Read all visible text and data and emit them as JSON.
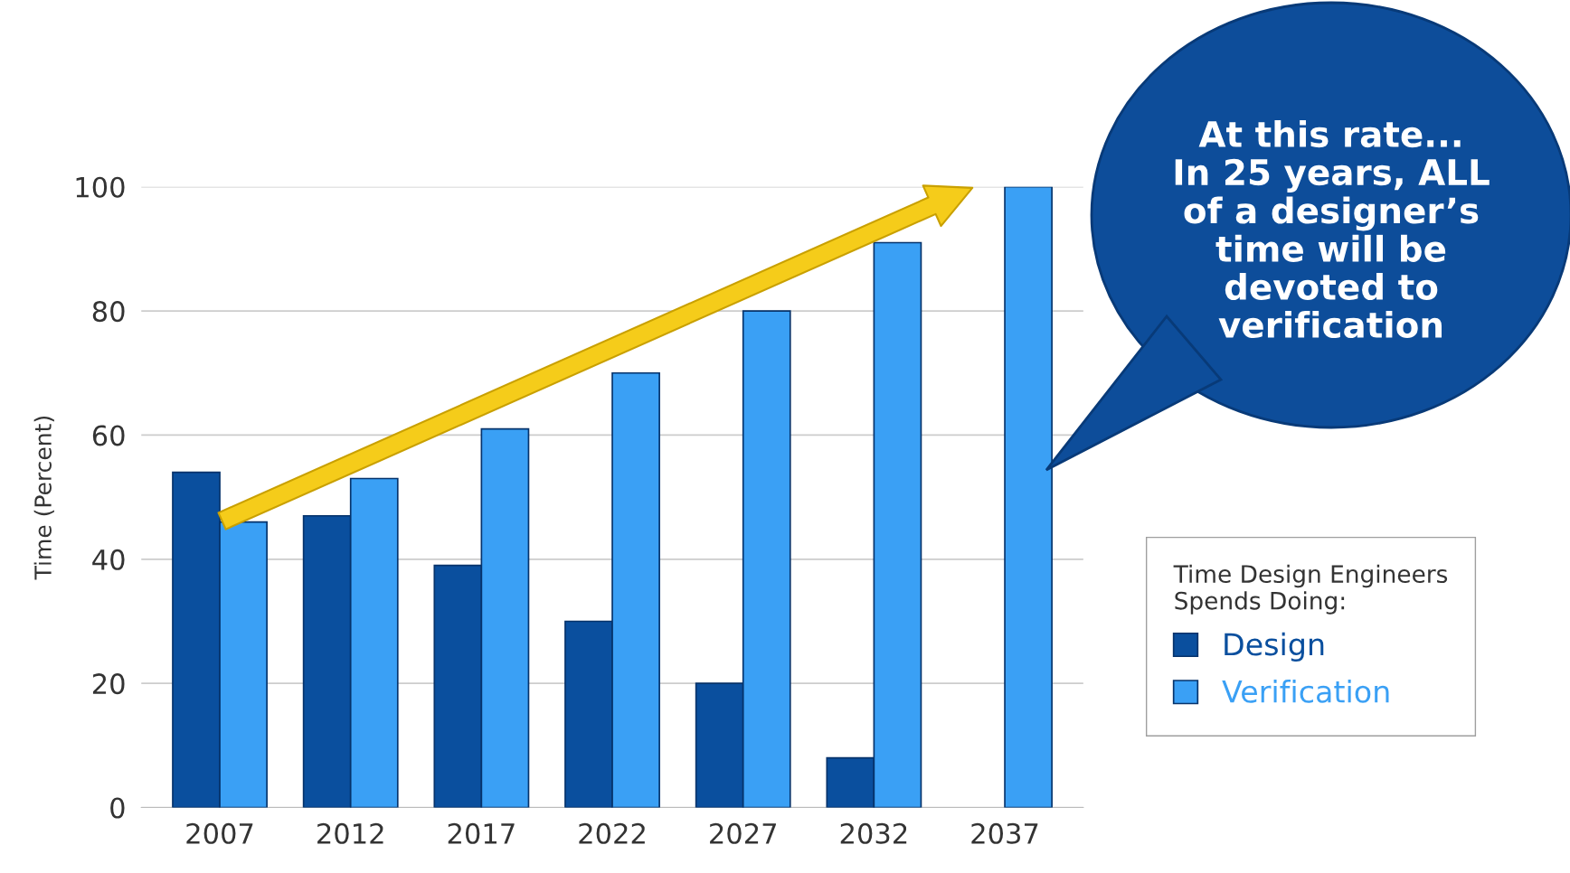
{
  "chart_data": {
    "type": "bar",
    "categories": [
      "2007",
      "2012",
      "2017",
      "2022",
      "2027",
      "2032",
      "2037"
    ],
    "series": [
      {
        "name": "Design",
        "color": "#0a4f9e",
        "values": [
          54,
          47,
          39,
          30,
          20,
          8,
          null
        ]
      },
      {
        "name": "Verification",
        "color": "#3aa0f5",
        "values": [
          46,
          53,
          61,
          70,
          80,
          91,
          100
        ]
      }
    ],
    "ylabel": "Time (Percent)",
    "ylim": [
      0,
      100
    ],
    "yticks": [
      0,
      20,
      40,
      60,
      80,
      100
    ],
    "grid": "y",
    "legend": "right",
    "legend_title": "Time Design Engineers\nSpends Doing:",
    "annotations": [
      "At this rate...\nIn 25 years, ALL\nof a designer’s\ntime will be\ndevoted to\nverification"
    ]
  }
}
